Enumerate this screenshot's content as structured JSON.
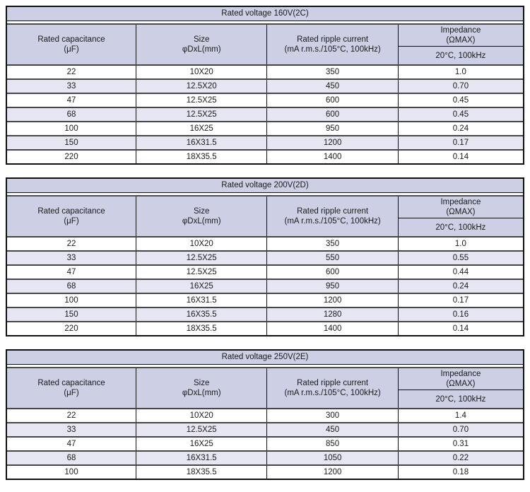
{
  "colors": {
    "header_bg": "#cdd0e5",
    "stripe_bg": "#e5e6f1",
    "outer_border": "#101010",
    "row_divider": "#454545"
  },
  "columns": {
    "capacitance_l1": "Rated capacitance",
    "capacitance_l2": "(μF)",
    "size_l1": "Size",
    "size_l2": "φDxL(mm)",
    "ripple_l1": "Rated ripple current",
    "ripple_l2": "(mA r.m.s./105°C, 100kHz)",
    "impedance_l1": "Impedance",
    "impedance_l2": "(ΩMAX)",
    "impedance_sub": "20°C, 100kHz"
  },
  "tables": [
    {
      "title": "Rated voltage 160V(2C)",
      "rows": [
        [
          "22",
          "10X20",
          "350",
          "1.0"
        ],
        [
          "33",
          "12.5X20",
          "450",
          "0.70"
        ],
        [
          "47",
          "12.5X25",
          "600",
          "0.45"
        ],
        [
          "68",
          "12.5X25",
          "600",
          "0.45"
        ],
        [
          "100",
          "16X25",
          "950",
          "0.24"
        ],
        [
          "150",
          "16X31.5",
          "1200",
          "0.17"
        ],
        [
          "220",
          "18X35.5",
          "1400",
          "0.14"
        ]
      ]
    },
    {
      "title": "Rated voltage 200V(2D)",
      "rows": [
        [
          "22",
          "10X20",
          "350",
          "1.0"
        ],
        [
          "33",
          "12.5X25",
          "550",
          "0.55"
        ],
        [
          "47",
          "12.5X25",
          "600",
          "0.44"
        ],
        [
          "68",
          "16X25",
          "950",
          "0.24"
        ],
        [
          "100",
          "16X31.5",
          "1200",
          "0.17"
        ],
        [
          "150",
          "16X35.5",
          "1280",
          "0.16"
        ],
        [
          "220",
          "18X35.5",
          "1400",
          "0.14"
        ]
      ]
    },
    {
      "title": "Rated voltage 250V(2E)",
      "rows": [
        [
          "22",
          "10X20",
          "300",
          "1.4"
        ],
        [
          "33",
          "12.5X25",
          "450",
          "0.70"
        ],
        [
          "47",
          "16X25",
          "850",
          "0.31"
        ],
        [
          "68",
          "16X31.5",
          "1050",
          "0.22"
        ],
        [
          "100",
          "18X35.5",
          "1200",
          "0.18"
        ]
      ]
    }
  ]
}
